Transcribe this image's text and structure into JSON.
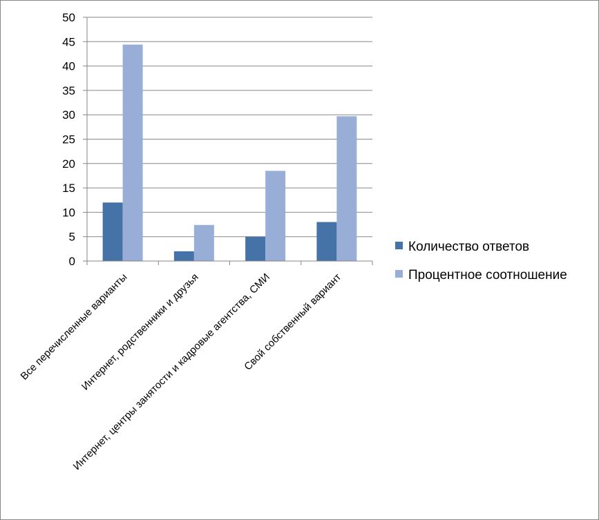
{
  "chart_data": {
    "type": "bar",
    "title": "",
    "xlabel": "",
    "ylabel": "",
    "ylim": [
      0,
      50
    ],
    "ytick_step": 5,
    "yticks": [
      "0",
      "5",
      "10",
      "15",
      "20",
      "25",
      "30",
      "35",
      "40",
      "45",
      "50"
    ],
    "grid": true,
    "legend_position": "right",
    "categories": [
      "Все перечисленные варианты",
      "Интернет, родственники и друзья",
      "Интернет, центры занятости и кадровые агентства, СМИ",
      "Свой собственный вариант"
    ],
    "series": [
      {
        "name": "Количество ответов",
        "color": "#4572A7",
        "values": [
          12,
          2,
          5,
          8
        ]
      },
      {
        "name": "Процентное соотношение",
        "color": "#99AED6",
        "values": [
          44.4,
          7.4,
          18.5,
          29.7
        ]
      }
    ]
  }
}
